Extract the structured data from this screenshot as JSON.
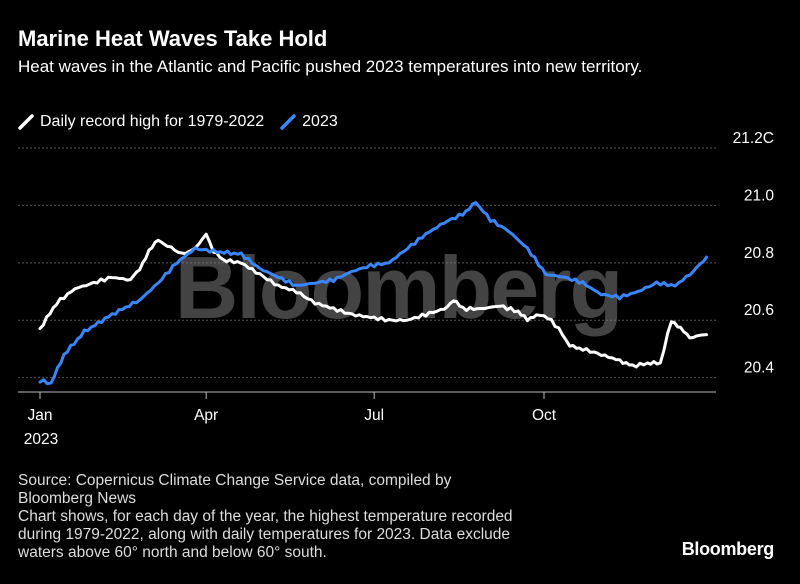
{
  "title": "Marine Heat Waves Take Hold",
  "subtitle": "Heat waves in the Atlantic and Pacific pushed 2023 temperatures into new territory.",
  "legend": [
    {
      "label": "Daily record high for 1979-2022",
      "color": "#ffffff"
    },
    {
      "label": "2023",
      "color": "#3a86ff"
    }
  ],
  "watermark": "Bloomberg",
  "source_lines": [
    "Source: Copernicus Climate Change Service data, compiled by",
    "Bloomberg News",
    "Chart shows, for each day of the year, the highest temperature recorded",
    "during 1979-2022, along with daily temperatures for 2023. Data exclude",
    "waters above 60° north and below 60° south."
  ],
  "brand": "Bloomberg",
  "chart_data": {
    "type": "line",
    "x_unit": "day of year",
    "x_ticks": [
      {
        "day": 1,
        "label": "Jan",
        "sublabel": "2023"
      },
      {
        "day": 91,
        "label": "Apr"
      },
      {
        "day": 182,
        "label": "Jul"
      },
      {
        "day": 274,
        "label": "Oct"
      }
    ],
    "y_ticks": [
      {
        "value": 20.4,
        "label": "20.4"
      },
      {
        "value": 20.6,
        "label": "20.6"
      },
      {
        "value": 20.8,
        "label": "20.8"
      },
      {
        "value": 21.0,
        "label": "21.0"
      },
      {
        "value": 21.2,
        "label": "21.2C"
      }
    ],
    "ylim": [
      20.35,
      21.2
    ],
    "xlim": [
      1,
      365
    ],
    "grid": true,
    "series": [
      {
        "name": "Daily record high for 1979-2022",
        "color": "#ffffff",
        "points": [
          [
            1,
            20.57
          ],
          [
            10,
            20.66
          ],
          [
            20,
            20.71
          ],
          [
            30,
            20.73
          ],
          [
            40,
            20.75
          ],
          [
            50,
            20.74
          ],
          [
            55,
            20.78
          ],
          [
            60,
            20.84
          ],
          [
            65,
            20.88
          ],
          [
            70,
            20.86
          ],
          [
            78,
            20.83
          ],
          [
            85,
            20.85
          ],
          [
            91,
            20.9
          ],
          [
            95,
            20.84
          ],
          [
            100,
            20.81
          ],
          [
            110,
            20.8
          ],
          [
            120,
            20.76
          ],
          [
            130,
            20.72
          ],
          [
            140,
            20.7
          ],
          [
            150,
            20.66
          ],
          [
            160,
            20.64
          ],
          [
            170,
            20.62
          ],
          [
            180,
            20.61
          ],
          [
            190,
            20.6
          ],
          [
            200,
            20.6
          ],
          [
            210,
            20.62
          ],
          [
            220,
            20.64
          ],
          [
            225,
            20.67
          ],
          [
            230,
            20.64
          ],
          [
            240,
            20.64
          ],
          [
            250,
            20.65
          ],
          [
            260,
            20.63
          ],
          [
            265,
            20.6
          ],
          [
            270,
            20.62
          ],
          [
            276,
            20.61
          ],
          [
            282,
            20.57
          ],
          [
            288,
            20.51
          ],
          [
            295,
            20.5
          ],
          [
            305,
            20.48
          ],
          [
            315,
            20.46
          ],
          [
            322,
            20.44
          ],
          [
            330,
            20.45
          ],
          [
            337,
            20.45
          ],
          [
            343,
            20.6
          ],
          [
            348,
            20.57
          ],
          [
            353,
            20.54
          ],
          [
            362,
            20.55
          ]
        ]
      },
      {
        "name": "2023",
        "color": "#3a86ff",
        "points": [
          [
            1,
            20.39
          ],
          [
            7,
            20.38
          ],
          [
            14,
            20.48
          ],
          [
            25,
            20.56
          ],
          [
            40,
            20.62
          ],
          [
            55,
            20.67
          ],
          [
            65,
            20.73
          ],
          [
            75,
            20.8
          ],
          [
            85,
            20.85
          ],
          [
            95,
            20.84
          ],
          [
            110,
            20.83
          ],
          [
            120,
            20.78
          ],
          [
            130,
            20.75
          ],
          [
            140,
            20.72
          ],
          [
            150,
            20.73
          ],
          [
            160,
            20.74
          ],
          [
            170,
            20.77
          ],
          [
            180,
            20.79
          ],
          [
            190,
            20.8
          ],
          [
            200,
            20.85
          ],
          [
            210,
            20.9
          ],
          [
            220,
            20.94
          ],
          [
            230,
            20.97
          ],
          [
            237,
            21.01
          ],
          [
            245,
            20.95
          ],
          [
            255,
            20.91
          ],
          [
            265,
            20.85
          ],
          [
            275,
            20.76
          ],
          [
            285,
            20.75
          ],
          [
            295,
            20.73
          ],
          [
            305,
            20.69
          ],
          [
            315,
            20.68
          ],
          [
            325,
            20.7
          ],
          [
            335,
            20.73
          ],
          [
            345,
            20.72
          ],
          [
            355,
            20.77
          ],
          [
            362,
            20.82
          ]
        ]
      }
    ]
  }
}
